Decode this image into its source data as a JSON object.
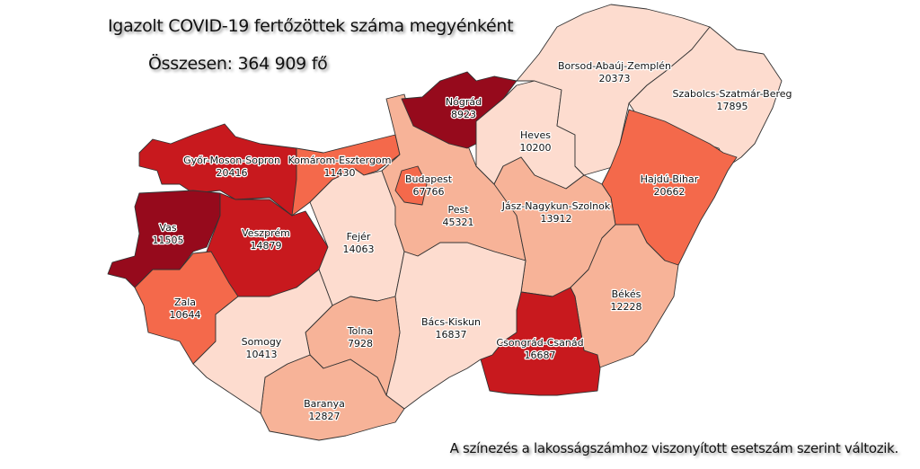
{
  "title": "Igazolt COVID-19 fertőzöttek száma megyénként",
  "total_label": "Összesen: 364 909 fő",
  "note": "A színezés a lakosságszámhoz viszonyított esetszám szerint változik.",
  "colors": {
    "darkest": "#960a1c",
    "dark": "#c8191e",
    "medium": "#f4694b",
    "light": "#f7b398",
    "lightest": "#fddccf"
  },
  "counties": [
    {
      "name": "Győr-Moson-Sopron",
      "cases": "20416",
      "shade": "dark"
    },
    {
      "name": "Vas",
      "cases": "11505",
      "shade": "darkest"
    },
    {
      "name": "Veszprém",
      "cases": "14879",
      "shade": "dark"
    },
    {
      "name": "Zala",
      "cases": "10644",
      "shade": "medium"
    },
    {
      "name": "Komárom-Esztergom",
      "cases": "11430",
      "shade": "medium"
    },
    {
      "name": "Fejér",
      "cases": "14063",
      "shade": "lightest"
    },
    {
      "name": "Pest",
      "cases": "45321",
      "shade": "light"
    },
    {
      "name": "Budapest",
      "cases": "67766",
      "shade": "medium"
    },
    {
      "name": "Nógrád",
      "cases": "8923",
      "shade": "darkest"
    },
    {
      "name": "Heves",
      "cases": "10200",
      "shade": "lightest"
    },
    {
      "name": "Borsod-Abaúj-Zemplén",
      "cases": "20373",
      "shade": "lightest"
    },
    {
      "name": "Szabolcs-Szatmár-Bereg",
      "cases": "17895",
      "shade": "lightest"
    },
    {
      "name": "Hajdú-Bihar",
      "cases": "20662",
      "shade": "medium"
    },
    {
      "name": "Jász-Nagykun-Szolnok",
      "cases": "13912",
      "shade": "light"
    },
    {
      "name": "Békés",
      "cases": "12228",
      "shade": "light"
    },
    {
      "name": "Csongrád-Csanád",
      "cases": "16687",
      "shade": "dark"
    },
    {
      "name": "Bács-Kiskun",
      "cases": "16837",
      "shade": "lightest"
    },
    {
      "name": "Tolna",
      "cases": "7928",
      "shade": "light"
    },
    {
      "name": "Baranya",
      "cases": "12827",
      "shade": "light"
    },
    {
      "name": "Somogy",
      "cases": "10413",
      "shade": "lightest"
    }
  ]
}
